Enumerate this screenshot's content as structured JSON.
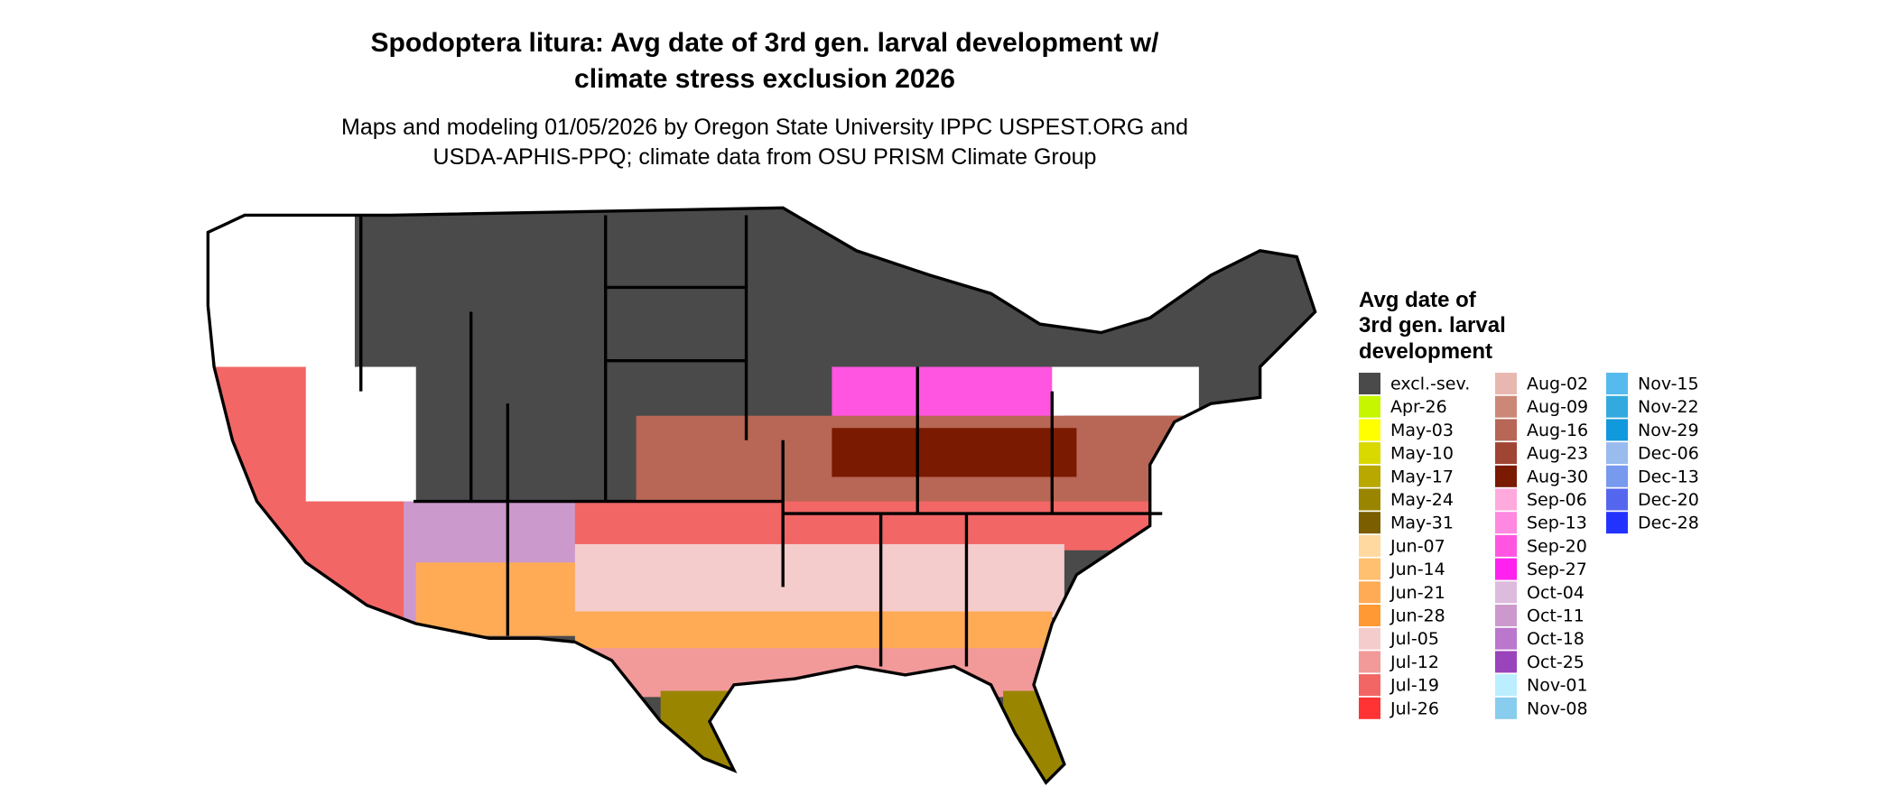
{
  "header": {
    "title_lines": [
      "Spodoptera litura: Avg date of 3rd gen. larval development w/",
      "climate stress exclusion 2026"
    ],
    "subtitle_lines": [
      "Maps and modeling 01/05/2026 by Oregon State University IPPC USPEST.ORG and",
      "USDA-APHIS-PPQ; climate data from OSU PRISM Climate Group"
    ]
  },
  "legend": {
    "title_lines": [
      "Avg date of",
      "3rd gen. larval",
      "development"
    ],
    "items": [
      {
        "label": "excl.-sev.",
        "color": "#4a4a4a"
      },
      {
        "label": "Apr-26",
        "color": "#c6f700"
      },
      {
        "label": "May-03",
        "color": "#ffff00"
      },
      {
        "label": "May-10",
        "color": "#d9d900"
      },
      {
        "label": "May-17",
        "color": "#b8a800"
      },
      {
        "label": "May-24",
        "color": "#9a8500"
      },
      {
        "label": "May-31",
        "color": "#7a5e00"
      },
      {
        "label": "Jun-07",
        "color": "#ffd9a0"
      },
      {
        "label": "Jun-14",
        "color": "#ffc070"
      },
      {
        "label": "Jun-21",
        "color": "#ffab55"
      },
      {
        "label": "Jun-28",
        "color": "#ff9933"
      },
      {
        "label": "Jul-05",
        "color": "#f5cccc"
      },
      {
        "label": "Jul-12",
        "color": "#f29999"
      },
      {
        "label": "Jul-19",
        "color": "#f26666"
      },
      {
        "label": "Jul-26",
        "color": "#ff3333"
      },
      {
        "label": "Aug-02",
        "color": "#e8b8b0"
      },
      {
        "label": "Aug-09",
        "color": "#cc8877"
      },
      {
        "label": "Aug-16",
        "color": "#b86655"
      },
      {
        "label": "Aug-23",
        "color": "#a04433"
      },
      {
        "label": "Aug-30",
        "color": "#7a1a00"
      },
      {
        "label": "Sep-06",
        "color": "#ffaadd"
      },
      {
        "label": "Sep-13",
        "color": "#ff88e0"
      },
      {
        "label": "Sep-20",
        "color": "#ff55e0"
      },
      {
        "label": "Sep-27",
        "color": "#ff22ee"
      },
      {
        "label": "Oct-04",
        "color": "#ddbbdd"
      },
      {
        "label": "Oct-11",
        "color": "#cc99cc"
      },
      {
        "label": "Oct-18",
        "color": "#bb77cc"
      },
      {
        "label": "Oct-25",
        "color": "#9944bb"
      },
      {
        "label": "Nov-01",
        "color": "#bbeeff"
      },
      {
        "label": "Nov-08",
        "color": "#88ccee"
      },
      {
        "label": "Nov-15",
        "color": "#55bbee"
      },
      {
        "label": "Nov-22",
        "color": "#33aadd"
      },
      {
        "label": "Nov-29",
        "color": "#1199dd"
      },
      {
        "label": "Dec-06",
        "color": "#99bbee"
      },
      {
        "label": "Dec-13",
        "color": "#7799ee"
      },
      {
        "label": "Dec-20",
        "color": "#5566ee"
      },
      {
        "label": "Dec-28",
        "color": "#2233ff"
      }
    ]
  }
}
